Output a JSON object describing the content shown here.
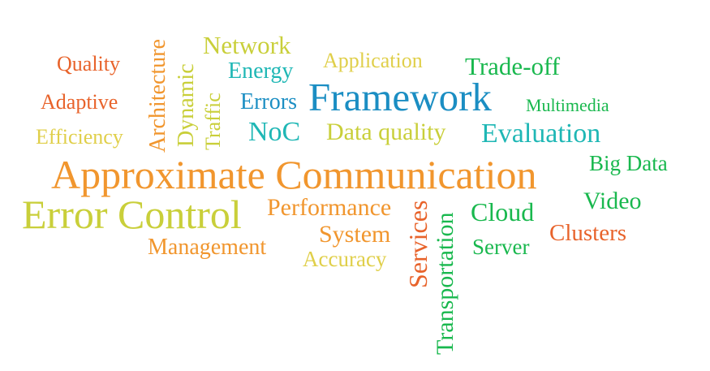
{
  "colors": {
    "orange_red": "#e8632b",
    "orange": "#f1962e",
    "yellow": "#e0cf4a",
    "olive_yellow": "#c9cf3a",
    "teal": "#1fb7b5",
    "blue": "#1b8ec3",
    "green": "#1ec266",
    "bright_green": "#19b84e"
  },
  "words": {
    "quality": "Quality",
    "adaptive": "Adaptive",
    "efficiency": "Efficiency",
    "architecture": "Architecture",
    "dynamic": "Dynamic",
    "traffic": "Traffic",
    "network": "Network",
    "energy": "Energy",
    "errors": "Errors",
    "noc": "NoC",
    "application": "Application",
    "framework": "Framework",
    "data_quality": "Data quality",
    "trade_off": "Trade-off",
    "multimedia": "Multimedia",
    "evaluation": "Evaluation",
    "approximate_communication": "Approximate Communication",
    "big_data": "Big Data",
    "error_control": "Error Control",
    "performance": "Performance",
    "system": "System",
    "management": "Management",
    "accuracy": "Accuracy",
    "services": "Services",
    "transportation": "Transportation",
    "cloud": "Cloud",
    "server": "Server",
    "video": "Video",
    "clusters": "Clusters"
  }
}
